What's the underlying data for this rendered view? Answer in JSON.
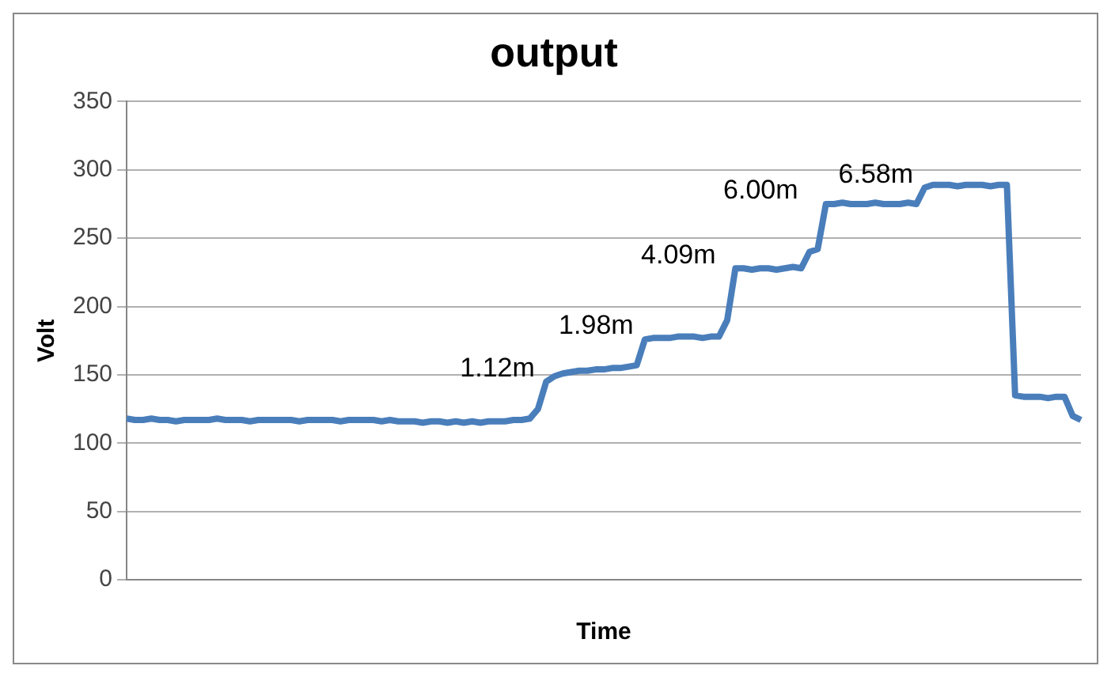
{
  "chart_data": {
    "type": "line",
    "title": "output",
    "xlabel": "Time",
    "ylabel": "Volt",
    "categories": [
      null,
      null,
      null,
      null,
      null,
      null,
      null,
      null,
      null,
      null,
      null,
      null,
      null,
      null,
      null,
      null,
      null,
      null,
      null,
      null,
      null,
      null,
      null,
      null,
      null,
      null,
      null,
      null,
      null,
      null,
      null,
      null,
      null,
      null,
      null,
      null,
      null,
      null,
      null,
      null,
      null,
      null,
      null,
      null,
      null,
      null,
      null,
      null,
      null,
      null,
      null,
      null,
      null,
      null,
      null,
      null,
      null,
      null,
      null,
      null,
      null,
      null,
      null,
      null,
      null,
      null,
      null,
      null,
      null,
      null,
      null,
      null,
      null,
      null,
      null,
      null,
      null,
      null,
      null,
      null,
      null,
      null,
      null,
      null,
      null,
      null,
      null,
      null,
      null,
      null,
      null,
      null,
      null,
      null,
      null,
      null,
      null,
      null,
      null,
      null,
      null,
      null,
      null,
      null,
      null,
      null,
      null,
      null,
      null,
      null,
      null,
      null,
      null,
      null,
      null,
      null,
      null
    ],
    "series": [
      {
        "color": "#4a7ebb",
        "values": [
          118,
          117,
          117,
          118,
          117,
          117,
          116,
          117,
          117,
          117,
          117,
          118,
          117,
          117,
          117,
          116,
          117,
          117,
          117,
          117,
          117,
          116,
          117,
          117,
          117,
          117,
          116,
          117,
          117,
          117,
          117,
          116,
          117,
          116,
          116,
          116,
          115,
          116,
          116,
          115,
          116,
          115,
          116,
          115,
          116,
          116,
          116,
          117,
          117,
          118,
          125,
          145,
          149,
          151,
          152,
          153,
          153,
          154,
          154,
          155,
          155,
          156,
          157,
          176,
          177,
          177,
          177,
          178,
          178,
          178,
          177,
          178,
          178,
          190,
          228,
          228,
          227,
          228,
          228,
          227,
          228,
          229,
          228,
          240,
          242,
          275,
          275,
          276,
          275,
          275,
          275,
          276,
          275,
          275,
          275,
          276,
          275,
          287,
          289,
          289,
          289,
          288,
          289,
          289,
          289,
          288,
          289,
          289,
          135,
          134,
          134,
          134,
          133,
          134,
          134,
          120,
          117
        ]
      }
    ],
    "annotations": [
      "1.12m",
      "1.98m",
      "4.09m",
      "6.00m",
      "6.58m"
    ],
    "ylim": [
      0,
      350
    ],
    "yticks": [
      0,
      50,
      100,
      150,
      200,
      250,
      300,
      350
    ],
    "grid": "y",
    "legend": false,
    "marker": "none",
    "line_style": "solid"
  }
}
